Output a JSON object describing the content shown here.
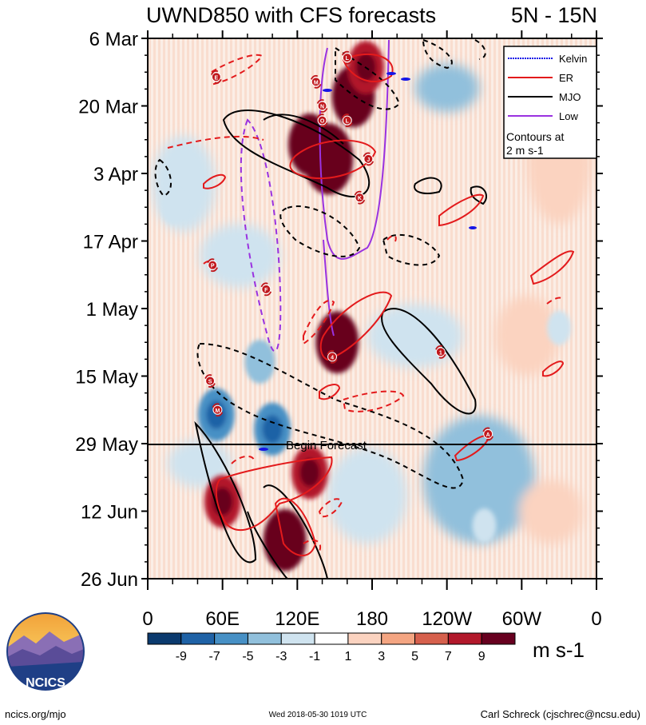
{
  "chart_data": {
    "type": "heatmap",
    "title": "UWND850 with CFS forecasts",
    "region": "5N - 15N",
    "y_ticks": [
      "6 Mar",
      "20 Mar",
      "3 Apr",
      "17 Apr",
      "1 May",
      "15 May",
      "29 May",
      "12 Jun",
      "26 Jun"
    ],
    "y_range": [
      "6 Mar",
      "26 Jun"
    ],
    "x_ticks": [
      "0",
      "60E",
      "120E",
      "180",
      "120W",
      "60W",
      "0"
    ],
    "x_range_deg_east": [
      0,
      360
    ],
    "forecast_line": {
      "date": "29 May",
      "label": "Begin Forecast"
    },
    "legend": {
      "position": "top-right",
      "entries": [
        {
          "label": "Kelvin",
          "color": "#1515e6",
          "dash": "dotted"
        },
        {
          "label": "ER",
          "color": "#e31a1c",
          "dash": "solid"
        },
        {
          "label": "MJO",
          "color": "#000000",
          "dash": "solid"
        },
        {
          "label": "Low",
          "color": "#9a32e0",
          "dash": "solid"
        }
      ],
      "note_line1": "Contours at",
      "note_line2": "2 m s-1"
    },
    "colorbar": {
      "unit": "m s-1",
      "tick_labels": [
        "-9",
        "-7",
        "-5",
        "-3",
        "-1",
        "1",
        "3",
        "5",
        "7",
        "9"
      ],
      "colors": [
        "#0b3a6e",
        "#1f62a6",
        "#4790c5",
        "#91c0dc",
        "#cfe3ef",
        "#ffffff",
        "#fbd3c0",
        "#f4a582",
        "#d6604d",
        "#b2182b",
        "#67001f"
      ]
    },
    "anomaly_blobs": [
      {
        "lon": 165,
        "date": "2018-03-18",
        "value": 9
      },
      {
        "lon": 145,
        "date": "2018-03-31",
        "value": 11
      },
      {
        "lon": 130,
        "date": "2018-03-28",
        "value": 9
      },
      {
        "lon": 152,
        "date": "2018-05-08",
        "value": 9
      },
      {
        "lon": 60,
        "date": "2018-06-10",
        "value": 7
      },
      {
        "lon": 110,
        "date": "2018-06-18",
        "value": 9
      },
      {
        "lon": 130,
        "date": "2018-06-04",
        "value": 7
      },
      {
        "lon": 175,
        "date": "2018-03-12",
        "value": 7
      },
      {
        "lon": 55,
        "date": "2018-05-23",
        "value": -7
      },
      {
        "lon": 100,
        "date": "2018-05-26",
        "value": -7
      },
      {
        "lon": 90,
        "date": "2018-05-12",
        "value": -5
      },
      {
        "lon": 270,
        "date": "2018-06-15",
        "value": -3
      },
      {
        "lon": 20,
        "date": "2018-04-10",
        "value": -3
      },
      {
        "lon": 330,
        "date": "2018-05-05",
        "value": -3
      }
    ],
    "storm_markers": [
      {
        "letter": "E",
        "lon": 55,
        "date": "2018-03-14"
      },
      {
        "letter": "L",
        "lon": 160,
        "date": "2018-03-10"
      },
      {
        "letter": "M",
        "lon": 135,
        "date": "2018-03-15"
      },
      {
        "letter": "N",
        "lon": 140,
        "date": "2018-03-20"
      },
      {
        "letter": "L",
        "lon": 160,
        "date": "2018-03-23"
      },
      {
        "letter": "O",
        "lon": 140,
        "date": "2018-03-23"
      },
      {
        "letter": "J",
        "lon": 177,
        "date": "2018-03-31"
      },
      {
        "letter": "K",
        "lon": 170,
        "date": "2018-04-08"
      },
      {
        "letter": "P",
        "lon": 52,
        "date": "2018-04-22"
      },
      {
        "letter": "F",
        "lon": 95,
        "date": "2018-04-27"
      },
      {
        "letter": "4",
        "lon": 148,
        "date": "2018-05-11"
      },
      {
        "letter": "1",
        "lon": 235,
        "date": "2018-05-10"
      },
      {
        "letter": "S",
        "lon": 50,
        "date": "2018-05-16"
      },
      {
        "letter": "M",
        "lon": 56,
        "date": "2018-05-22"
      },
      {
        "letter": "A",
        "lon": 273,
        "date": "2018-05-27"
      }
    ]
  },
  "footer": {
    "logo_text": "NCICS",
    "left": "ncics.org/mjo",
    "center": "Wed 2018-05-30 1019 UTC",
    "right": "Carl Schreck (cjschrec@ncsu.edu)"
  }
}
